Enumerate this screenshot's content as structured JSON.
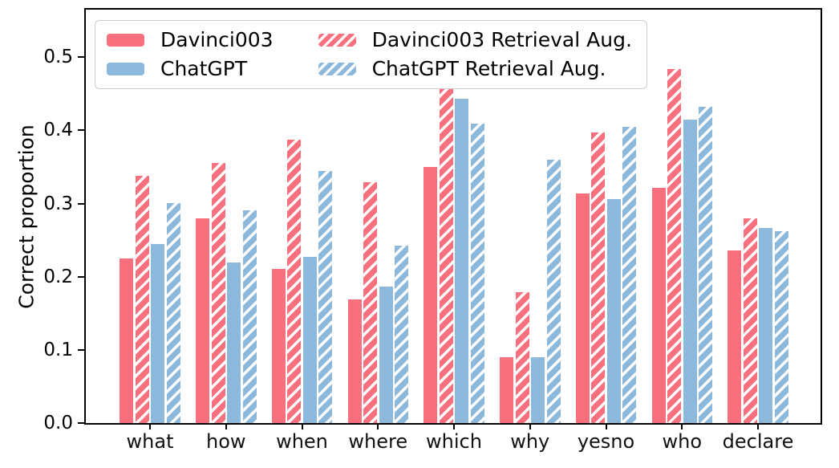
{
  "chart_data": {
    "type": "bar",
    "title": "",
    "xlabel": "",
    "ylabel": "Correct proportion",
    "categories": [
      "what",
      "how",
      "when",
      "where",
      "which",
      "why",
      "yesno",
      "who",
      "declare"
    ],
    "series": [
      {
        "name": "Davinci003",
        "color": "#F8707E",
        "hatch": false,
        "values": [
          0.225,
          0.28,
          0.211,
          0.169,
          0.35,
          0.09,
          0.314,
          0.321,
          0.236
        ]
      },
      {
        "name": "Davinci003 Retrieval Aug.",
        "color": "#F8707E",
        "hatch": true,
        "values": [
          0.338,
          0.356,
          0.387,
          0.329,
          0.46,
          0.179,
          0.397,
          0.484,
          0.28
        ]
      },
      {
        "name": "ChatGPT",
        "color": "#8BB8DB",
        "hatch": false,
        "values": [
          0.245,
          0.22,
          0.227,
          0.187,
          0.443,
          0.09,
          0.306,
          0.415,
          0.267
        ]
      },
      {
        "name": "ChatGPT Retrieval Aug.",
        "color": "#8BB8DB",
        "hatch": true,
        "values": [
          0.301,
          0.291,
          0.345,
          0.242,
          0.409,
          0.36,
          0.405,
          0.432,
          0.262
        ]
      }
    ],
    "yticks": [
      0.0,
      0.1,
      0.2,
      0.3,
      0.4,
      0.5
    ],
    "ylim": [
      0,
      0.565
    ],
    "grid": false,
    "legend_position": "upper left",
    "legend_columns": 2,
    "hatch_color": "#ffffff",
    "axis_color": "#000000",
    "background_color": "#ffffff"
  }
}
